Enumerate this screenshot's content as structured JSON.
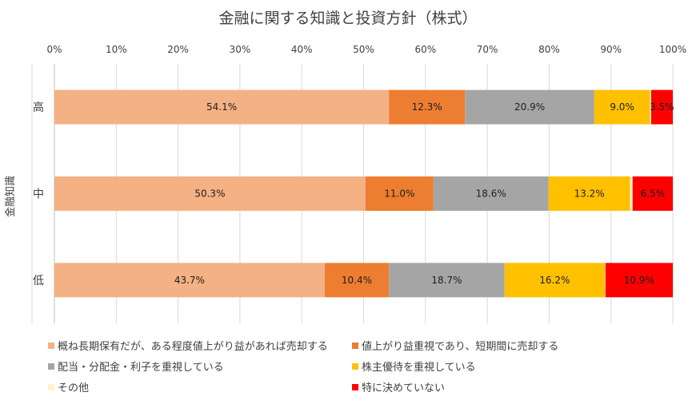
{
  "chart_data": {
    "type": "bar",
    "orientation": "horizontal",
    "stacked": true,
    "title": "金融に関する知識と投資方針（株式）",
    "ylabel": "金融知識",
    "xlabel": "",
    "x_ticks": [
      "0%",
      "10%",
      "20%",
      "30%",
      "40%",
      "50%",
      "60%",
      "70%",
      "80%",
      "90%",
      "100%"
    ],
    "xlim": [
      0,
      100
    ],
    "grid": true,
    "legend_position": "bottom",
    "categories": [
      "高",
      "中",
      "低"
    ],
    "series": [
      {
        "name": "概ね長期保有だが、ある程度値上がり益があれば売却する",
        "color": "#F4B183",
        "values": [
          54.1,
          50.3,
          43.7
        ],
        "labels": [
          "54.1%",
          "50.3%",
          "43.7%"
        ]
      },
      {
        "name": "値上がり益重視であり、短期間に売却する",
        "color": "#ED7D31",
        "values": [
          12.3,
          11.0,
          10.4
        ],
        "labels": [
          "12.3%",
          "11.0%",
          "10.4%"
        ]
      },
      {
        "name": "配当・分配金・利子を重視している",
        "color": "#A5A5A5",
        "values": [
          20.9,
          18.6,
          18.7
        ],
        "labels": [
          "20.9%",
          "18.6%",
          "18.7%"
        ]
      },
      {
        "name": "株主優待を重視している",
        "color": "#FFC000",
        "values": [
          9.0,
          13.2,
          16.2
        ],
        "labels": [
          "9.0%",
          "13.2%",
          "16.2%"
        ]
      },
      {
        "name": "その他",
        "color": "#FFF2CC",
        "values": [
          0.2,
          0.4,
          0.1
        ],
        "labels": [
          "",
          "",
          ""
        ]
      },
      {
        "name": "特に決めていない",
        "color": "#FF0000",
        "values": [
          3.5,
          6.5,
          10.9
        ],
        "labels": [
          "3.5%",
          "6.5%",
          "10.9%"
        ]
      }
    ]
  }
}
